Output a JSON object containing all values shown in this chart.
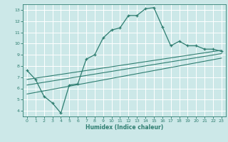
{
  "title": "",
  "xlabel": "Humidex (Indice chaleur)",
  "xlim": [
    -0.5,
    23.5
  ],
  "ylim": [
    3.5,
    13.5
  ],
  "xticks": [
    0,
    1,
    2,
    3,
    4,
    5,
    6,
    7,
    8,
    9,
    10,
    11,
    12,
    13,
    14,
    15,
    16,
    17,
    18,
    19,
    20,
    21,
    22,
    23
  ],
  "yticks": [
    4,
    5,
    6,
    7,
    8,
    9,
    10,
    11,
    12,
    13
  ],
  "bg_color": "#cce8e8",
  "grid_color": "#ffffff",
  "line_color": "#2e7d70",
  "main_line_x": [
    0,
    1,
    2,
    3,
    4,
    5,
    6,
    7,
    8,
    9,
    10,
    11,
    12,
    13,
    14,
    15,
    16,
    17,
    18,
    19,
    20,
    21,
    22,
    23
  ],
  "main_line_y": [
    7.6,
    6.8,
    5.3,
    4.7,
    3.8,
    6.3,
    6.4,
    8.6,
    9.0,
    10.5,
    11.2,
    11.4,
    12.5,
    12.5,
    13.1,
    13.2,
    11.5,
    9.8,
    10.2,
    9.8,
    9.8,
    9.5,
    9.5,
    9.3
  ],
  "line1_x": [
    0,
    23
  ],
  "line1_y": [
    5.5,
    8.7
  ],
  "line2_x": [
    0,
    23
  ],
  "line2_y": [
    6.3,
    9.1
  ],
  "line3_x": [
    0,
    23
  ],
  "line3_y": [
    6.8,
    9.4
  ]
}
